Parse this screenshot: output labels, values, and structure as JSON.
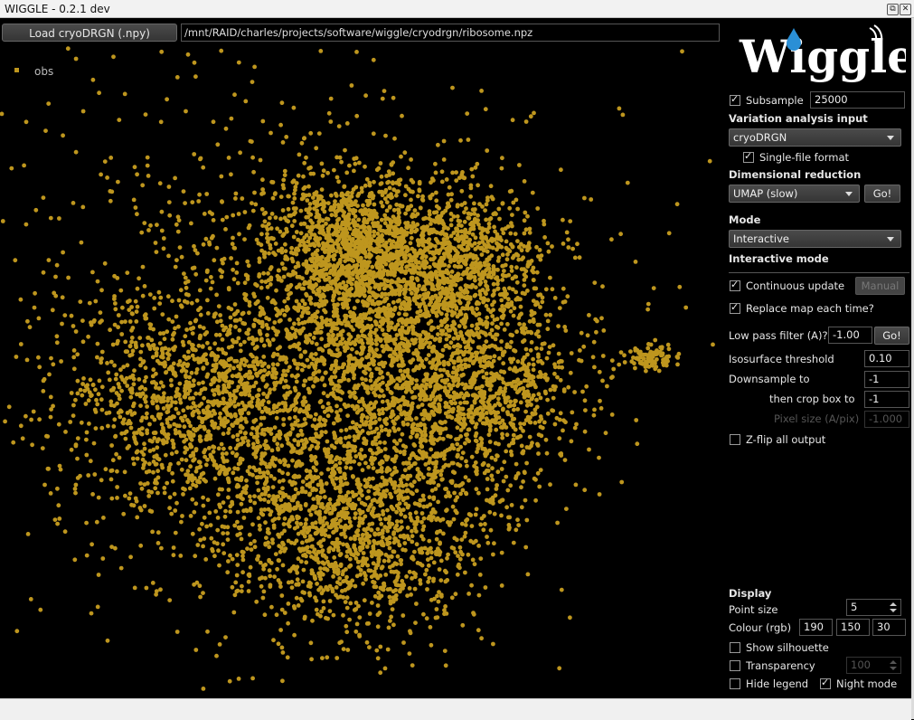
{
  "window": {
    "title": "WIGGLE - 0.2.1 dev"
  },
  "toolbar": {
    "load_button": "Load cryoDRGN (.npy)",
    "path": "/mnt/RAID/charles/projects/software/wiggle/cryodrgn/ribosome.npz"
  },
  "plot": {
    "legend_label": "obs",
    "point_color": "#be961e",
    "background": "#000000"
  },
  "logo": {
    "text": "Wiggle"
  },
  "controls": {
    "subsample_label": "Subsample",
    "subsample_checked": true,
    "subsample_value": "25000",
    "variation_heading": "Variation analysis input",
    "variation_select": "cryoDRGN",
    "single_file_label": "Single-file format",
    "dimred_heading": "Dimensional reduction",
    "dimred_select": "UMAP (slow)",
    "go_label": "Go!",
    "mode_heading": "Mode",
    "mode_select": "Interactive",
    "interactive_heading": "Interactive mode",
    "continuous_label": "Continuous update",
    "manual_label": "Manual",
    "replace_label": "Replace map each time?",
    "lowpass_label": "Low pass filter (A)?",
    "lowpass_value": "-1.00",
    "lowpass_go": "Go!",
    "iso_label": "Isosurface threshold",
    "iso_value": "0.10",
    "downsample_label": "Downsample to",
    "downsample_value": "-1",
    "cropbox_label": "then crop box to",
    "cropbox_value": "-1",
    "pixel_label": "Pixel size (A/pix)",
    "pixel_value": "-1.000",
    "zflip_label": "Z-flip all output"
  },
  "display": {
    "heading": "Display",
    "point_size_label": "Point size",
    "point_size_value": "5",
    "colour_label": "Colour (rgb)",
    "colour_r": "190",
    "colour_g": "150",
    "colour_b": "30",
    "silhouette_label": "Show silhouette",
    "transparency_label": "Transparency",
    "transparency_value": "100",
    "hide_legend_label": "Hide legend",
    "night_mode_label": "Night mode"
  }
}
